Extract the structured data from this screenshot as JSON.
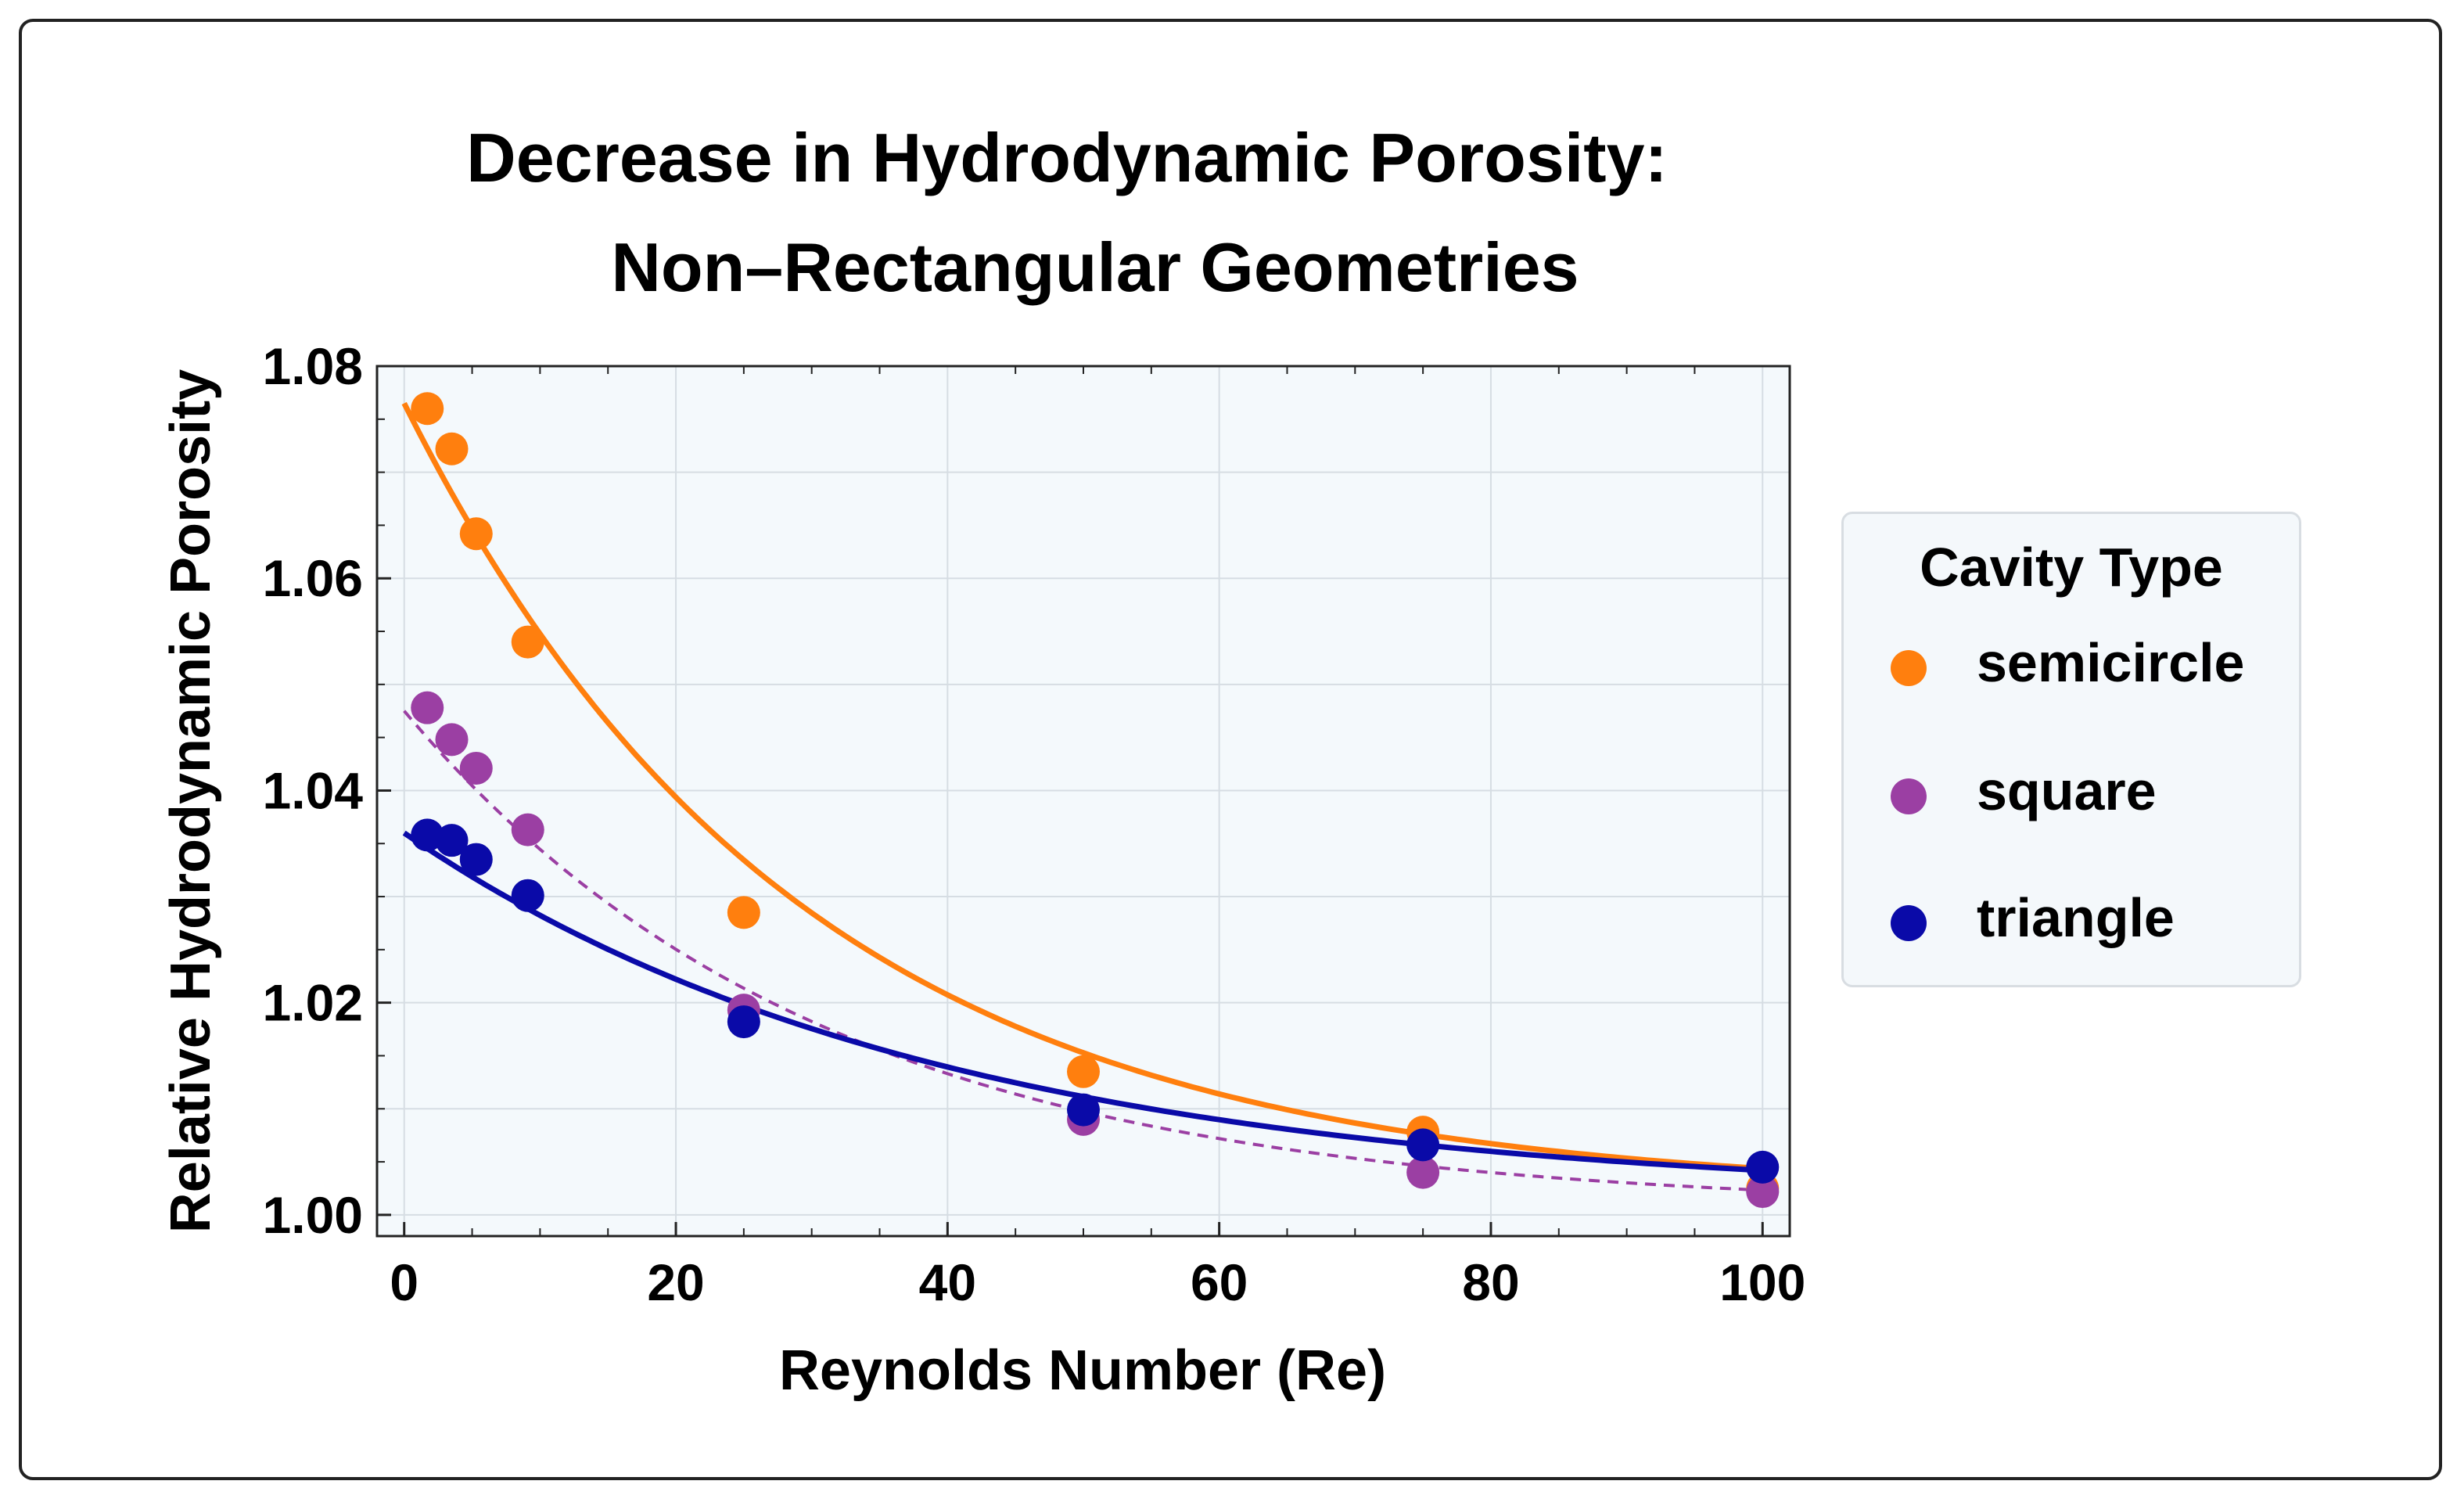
{
  "chart_data": {
    "type": "scatter",
    "title_lines": [
      "Decrease in Hydrodynamic Porosity:",
      "Non–Rectangular Geometries"
    ],
    "xlabel": "Reynolds Number (Re)",
    "ylabel": "Relative Hydrodynamic Porosity",
    "xlim": [
      -2,
      102
    ],
    "ylim": [
      0.998,
      1.08
    ],
    "xticks": [
      0,
      20,
      40,
      60,
      80,
      100
    ],
    "xtick_labels": [
      "0",
      "20",
      "40",
      "60",
      "80",
      "100"
    ],
    "yticks": [
      1.0,
      1.02,
      1.04,
      1.06,
      1.08
    ],
    "ytick_labels": [
      "1.00",
      "1.02",
      "1.04",
      "1.06",
      "1.08"
    ],
    "grid": true,
    "background": "#f4f9fc",
    "legend": {
      "title": "Cavity Type",
      "placement": "right"
    },
    "series": [
      {
        "name": "semicircle",
        "color": "#ff7f0e",
        "line_style": "solid",
        "points": [
          [
            1.7,
            1.076
          ],
          [
            3.5,
            1.0722
          ],
          [
            5.3,
            1.0642
          ],
          [
            9.1,
            1.054
          ],
          [
            25,
            1.0285
          ],
          [
            50,
            1.0135
          ],
          [
            75,
            1.0078
          ],
          [
            100,
            1.0025
          ]
        ],
        "fit": {
          "model": "exponential",
          "a": 0.0745,
          "k": 0.0345,
          "c": 1.002
        }
      },
      {
        "name": "square",
        "color": "#9b3fa3",
        "line_style": "dashed",
        "points": [
          [
            1.7,
            1.0478
          ],
          [
            3.5,
            1.0448
          ],
          [
            5.3,
            1.0421
          ],
          [
            9.1,
            1.0363
          ],
          [
            25,
            1.0193
          ],
          [
            50,
            1.009
          ],
          [
            75,
            1.004
          ],
          [
            100,
            1.0022
          ]
        ],
        "fit": {
          "model": "exponential",
          "a": 0.047,
          "k": 0.0325,
          "c": 1.0005
        }
      },
      {
        "name": "triangle",
        "color": "#0a0aa8",
        "line_style": "solid",
        "points": [
          [
            1.7,
            1.0358
          ],
          [
            3.5,
            1.0353
          ],
          [
            5.3,
            1.0335
          ],
          [
            9.1,
            1.0301
          ],
          [
            25,
            1.0182
          ],
          [
            50,
            1.0099
          ],
          [
            75,
            1.0066
          ],
          [
            100,
            1.0045
          ]
        ],
        "fit": {
          "model": "exponential",
          "a": 0.0345,
          "k": 0.0255,
          "c": 1.0015
        }
      }
    ]
  }
}
